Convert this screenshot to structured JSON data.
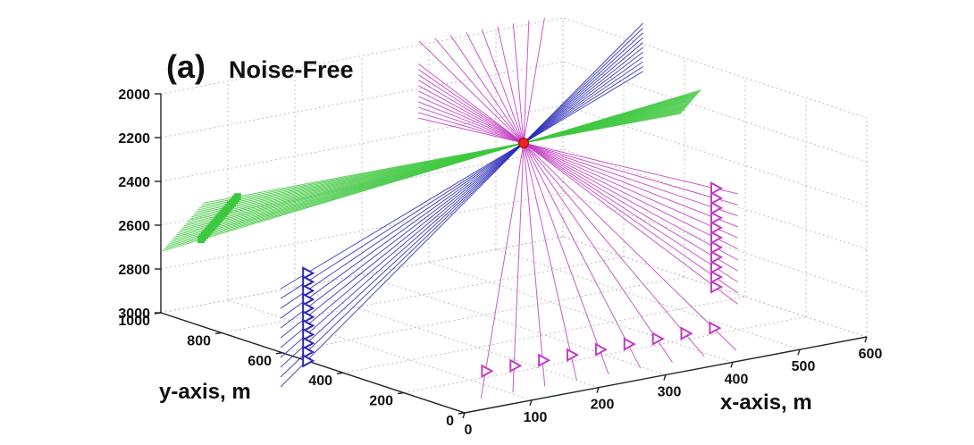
{
  "chart_data": {
    "type": "3d-ray-plot",
    "panel_label": "(a)",
    "title": "Noise-Free",
    "xlabel": "x-axis, m",
    "ylabel": "y-axis, m",
    "zlabel": "",
    "xlim": [
      0,
      600
    ],
    "ylim": [
      0,
      1000
    ],
    "zlim": [
      2000,
      3000
    ],
    "z_reversed": true,
    "x_ticks": [
      "0",
      "100",
      "200",
      "300",
      "400",
      "500",
      "600"
    ],
    "y_ticks": [
      "0",
      "200",
      "400",
      "600",
      "800",
      "1000"
    ],
    "z_ticks": [
      "2000",
      "2200",
      "2400",
      "2600",
      "2800",
      "3000"
    ],
    "grid": true,
    "source": {
      "x": 360,
      "y": 600,
      "z": 2250,
      "color": "#ee2222"
    },
    "series": [
      {
        "key": "blue-array",
        "color": "#2a2ab8",
        "marker": "triangle-right",
        "receivers_from": [
          0,
          520,
          2600
        ],
        "receivers_to": [
          0,
          520,
          3000
        ],
        "n_receivers": 11,
        "marker_every": 1
      },
      {
        "key": "green-array",
        "color": "#3ec83e",
        "marker": "square",
        "receivers_from": [
          60,
          880,
          2450
        ],
        "receivers_to": [
          60,
          1000,
          2700
        ],
        "n_receivers": 22,
        "marker_every": 1
      },
      {
        "key": "magenta-vertical",
        "color": "#c23cc2",
        "marker": "triangle-right",
        "receivers_from": [
          600,
          500,
          2550
        ],
        "receivers_to": [
          600,
          500,
          3000
        ],
        "n_receivers": 11,
        "marker_every": 1
      },
      {
        "key": "magenta-horizontal",
        "color": "#c23cc2",
        "marker": "triangle-right",
        "receivers_from": [
          140,
          240,
          3000
        ],
        "receivers_to": [
          480,
          240,
          3000
        ],
        "n_receivers": 9,
        "marker_every": 1
      }
    ]
  },
  "colors": {
    "grid": "#b8b8b8",
    "axis": "#222222",
    "text": "#111111"
  }
}
